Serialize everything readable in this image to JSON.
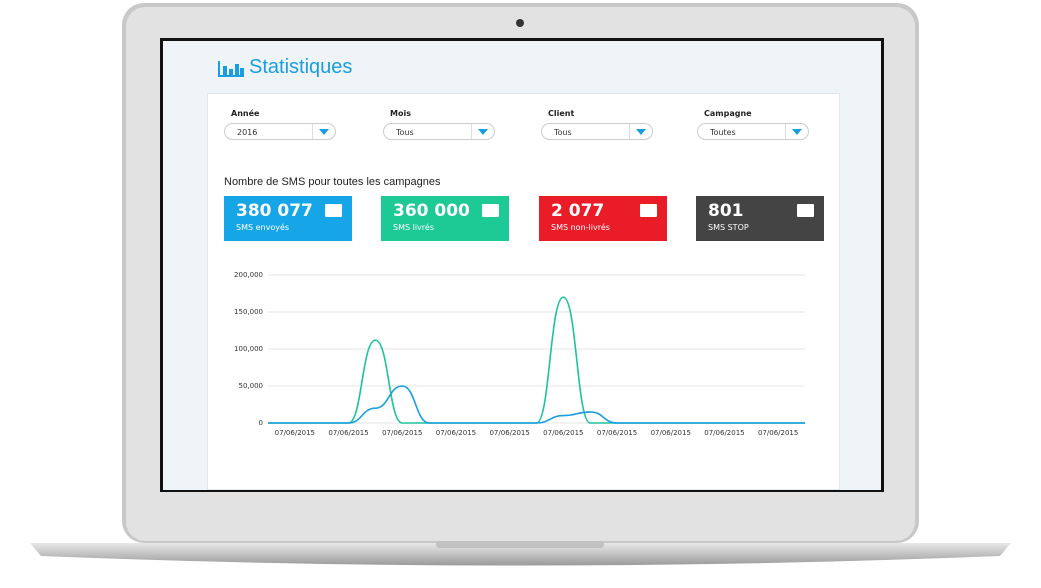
{
  "header": {
    "title": "Statistiques"
  },
  "filters": [
    {
      "label": "Année",
      "value": "2016"
    },
    {
      "label": "Mois",
      "value": "Tous"
    },
    {
      "label": "Client",
      "value": "Tous"
    },
    {
      "label": "Campagne",
      "value": "Toutes"
    }
  ],
  "section_title": "Nombre de SMS pour toutes les campagnes",
  "cards": [
    {
      "value": "380 077",
      "label": "SMS envoyés",
      "color": "#16a6e8"
    },
    {
      "value": "360 000",
      "label": "SMS livrés",
      "color": "#1dc995"
    },
    {
      "value": "2 077",
      "label": "SMS non-livrés",
      "color": "#ea1c28"
    },
    {
      "value": "801",
      "label": "SMS STOP",
      "color": "#444444"
    }
  ],
  "chart_data": {
    "type": "line",
    "categories": [
      null,
      "07/06/2015",
      null,
      "07/06/2015",
      null,
      "07/06/2015",
      null,
      "07/06/2015",
      null,
      "07/06/2015",
      null,
      "07/06/2015",
      null,
      "07/06/2015",
      null,
      "07/06/2015",
      null,
      "07/06/2015",
      null,
      "07/06/2015",
      null
    ],
    "series": [
      {
        "color": "#1dc39b",
        "values": [
          0,
          0,
          0,
          0,
          112000,
          0,
          0,
          0,
          0,
          0,
          0,
          170000,
          0,
          0,
          0,
          0,
          0,
          0,
          0,
          0,
          0
        ]
      },
      {
        "color": "#1a9ee0",
        "values": [
          0,
          0,
          0,
          0,
          20000,
          50000,
          0,
          0,
          0,
          0,
          0,
          10000,
          15000,
          0,
          0,
          0,
          0,
          0,
          0,
          0,
          0
        ]
      }
    ],
    "ylim": [
      0,
      200000
    ],
    "yticks": [
      0,
      {
        "value": 50000,
        "label": "50,000"
      },
      {
        "value": 100000,
        "label": "100,000"
      },
      {
        "value": 150000,
        "label": "150,000"
      },
      {
        "value": 200000,
        "label": "200,000"
      }
    ],
    "grid": true
  }
}
